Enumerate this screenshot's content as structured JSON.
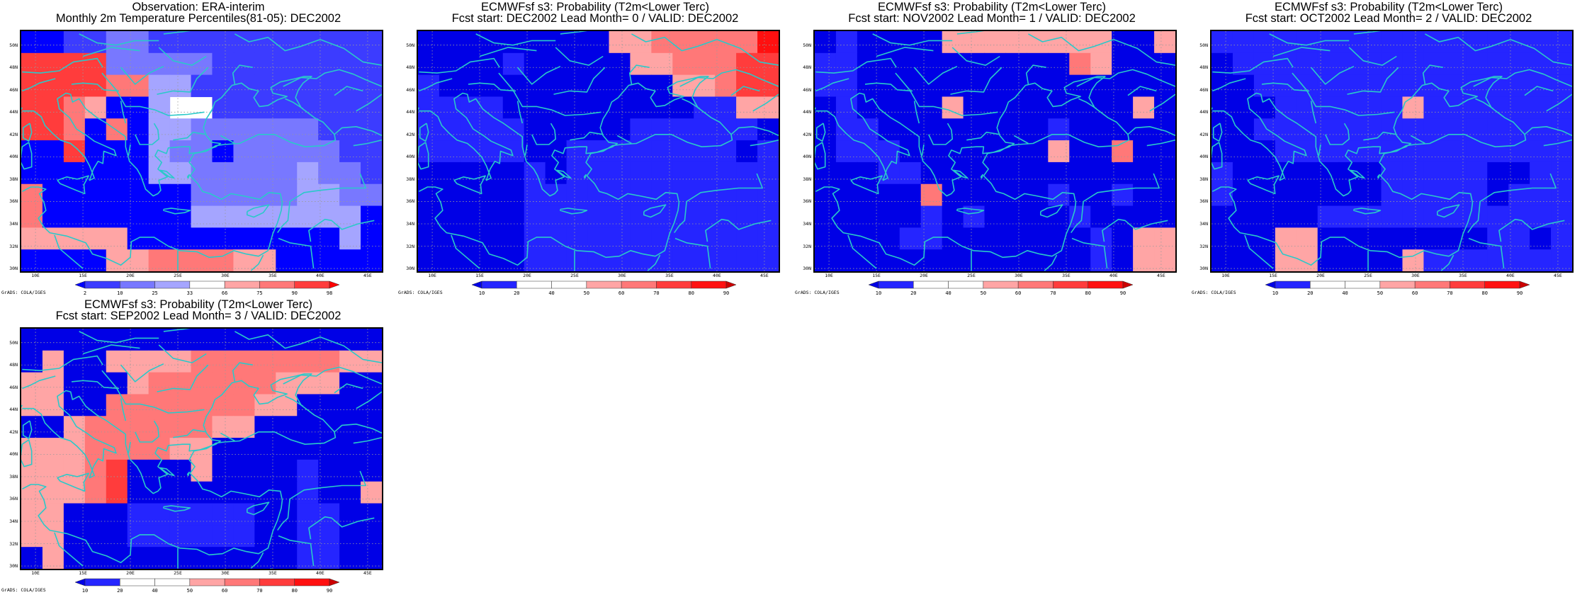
{
  "lat_ticks": [
    "50N",
    "48N",
    "46N",
    "44N",
    "42N",
    "40N",
    "38N",
    "36N",
    "34N",
    "32N",
    "30N"
  ],
  "lon_ticks": [
    "10E",
    "15E",
    "20E",
    "25E",
    "30E",
    "35E",
    "40E",
    "45E"
  ],
  "credit": "GrADS: COLA/IGES",
  "coastline_color": "#2ac9c9",
  "scales": {
    "obs": {
      "labels": [
        "2",
        "10",
        "25",
        "33",
        "66",
        "75",
        "90",
        "98"
      ],
      "colors": [
        "#0000ff",
        "#3c3cff",
        "#7878ff",
        "#a5a5ff",
        "#ffffff",
        "#ffa5a5",
        "#ff7878",
        "#ff3c3c",
        "#ff0000"
      ]
    },
    "prob": {
      "labels": [
        "10",
        "20",
        "40",
        "50",
        "60",
        "70",
        "80",
        "90"
      ],
      "colors": [
        "#0000e6",
        "#2525ff",
        "#ffffff",
        "#ffffff",
        "#ffa5a5",
        "#ff7878",
        "#ff3c3c",
        "#ff1010",
        "#cc0000"
      ]
    }
  },
  "panels": [
    {
      "title_line1": "Observation: ERA-interim",
      "title_line2": "Monthly 2m Temperature Percentiles(81-05): DEC2002",
      "scale": "obs",
      "grid": [
        "00112211111111111",
        "77772222211111111",
        "77776633111111111",
        "77650034411111111",
        "77606033222222111",
        "00700032202222211",
        "00000033222223221",
        "60000000222223322",
        "60000000333333330",
        "55555000000000030",
        "00005566665500000"
      ]
    },
    {
      "title_line1": "ECMWFsf s3: Probability (T2m<Lower Terc)",
      "title_line2": "Fcst start: DEC2002  Lead Month= 0 / VALID: DEC2002",
      "scale": "prob",
      "grid": [
        "00000000044555557",
        "00001000004455566",
        "10000000000044566",
        "11110000000001144",
        "11111000001111110",
        "11111001111111101",
        "00000101111111111",
        "00000111111111111",
        "00000111111111111",
        "00000111111111111",
        "00000111111111111"
      ]
    },
    {
      "title_line1": "ECMWFsf s3: Probability (T2m<Lower Terc)",
      "title_line2": "Fcst start: NOV2002  Lead Month= 1 / VALID: DEC2002",
      "scale": "prob",
      "grid": [
        "01000044444444004",
        "11000000000054000",
        "11000000000000000",
        "01000040000000040",
        "01100000000100000",
        "01110000000400500",
        "00011000000000000",
        "00000500000100100",
        "00000101000010000",
        "00001100000001044",
        "00000000000001044"
      ]
    },
    {
      "title_line1": "ECMWFsf s3: Probability (T2m<Lower Terc)",
      "title_line2": "Fcst start: OCT2002  Lead Month= 2 / VALID: DEC2002",
      "scale": "prob",
      "grid": [
        "11111111111111111",
        "01111111111111111",
        "00111111111111111",
        "00011111141111111",
        "00111111111111111",
        "00011111111111111",
        "10000000111110011",
        "10000000111110111",
        "00000111111111111",
        "00044000000001101",
        "00044000041111111"
      ]
    },
    {
      "title_line1": "ECMWFsf s3: Probability (T2m<Lower Terc)",
      "title_line2": "Fcst start: SEP2002  Lead Month= 3 / VALID: DEC2002",
      "scale": "prob",
      "grid": [
        "00000000000000000",
        "04004444555555544",
        "44000455555544400",
        "44005555555440000",
        "00455555544000000",
        "44455554400000000",
        "44456000400001000",
        "44456000000001004",
        "44000111111001100",
        "44000111111001100",
        "04000000000001100"
      ]
    }
  ]
}
